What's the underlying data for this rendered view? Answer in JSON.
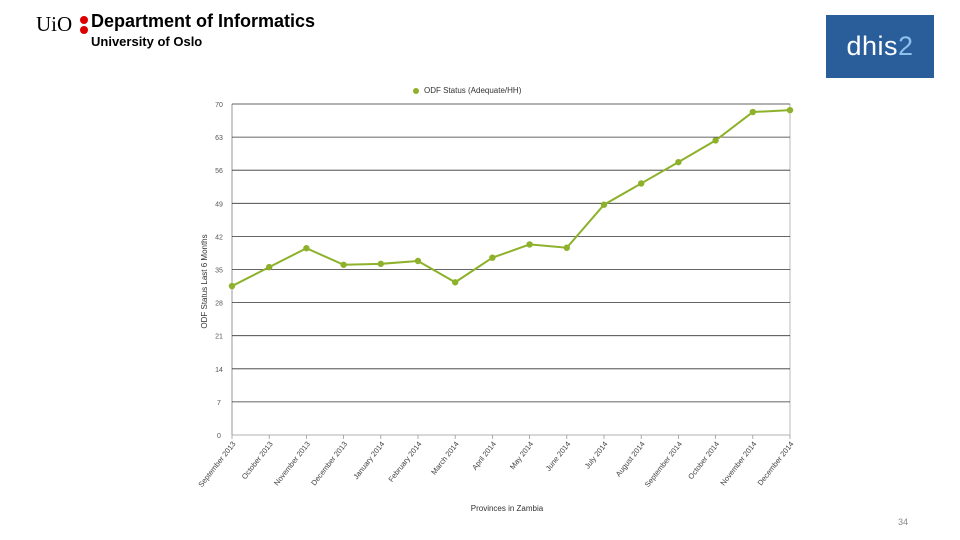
{
  "header": {
    "logo_text": "UiO",
    "department": "Department of Informatics",
    "university": "University of Oslo"
  },
  "dhis_logo": {
    "text": "dhis",
    "num": "2",
    "bg_color": "#2a5e9b"
  },
  "page_number": "34",
  "chart_data": {
    "type": "line",
    "title": "",
    "xlabel": "Provinces in Zambia",
    "ylabel": "ODF Status Last 6 Months",
    "ylim": [
      0,
      70
    ],
    "yticks": [
      0,
      7,
      14,
      21,
      28,
      35,
      42,
      49,
      56,
      63,
      70
    ],
    "grid": true,
    "legend_position": "top",
    "categories": [
      "September 2013",
      "October 2013",
      "November 2013",
      "December 2013",
      "January 2014",
      "February 2014",
      "March 2014",
      "April 2014",
      "May 2014",
      "June 2014",
      "July 2014",
      "August 2014",
      "September 2014",
      "October 2014",
      "November 2014",
      "December 2014"
    ],
    "series": [
      {
        "name": "ODF Status (Adequate/HH)",
        "color": "#8db12b",
        "values": [
          31.5,
          35.5,
          39.5,
          36,
          36.2,
          36.8,
          32.3,
          37.5,
          40.3,
          39.6,
          48.7,
          53.2,
          57.7,
          62.3,
          68.3,
          68.7
        ]
      }
    ]
  }
}
